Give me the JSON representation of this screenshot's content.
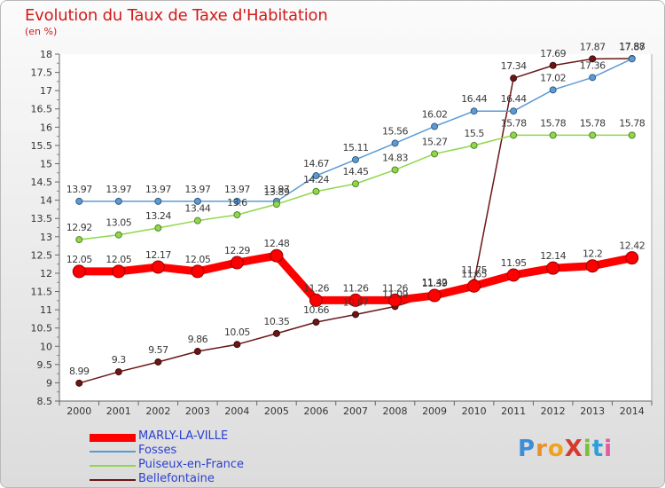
{
  "title": "Evolution du Taux de Taxe d'Habitation",
  "subtitle": "(en %)",
  "brand": "ProXiti",
  "chart_data": {
    "type": "line",
    "x": [
      "2000",
      "2001",
      "2002",
      "2003",
      "2004",
      "2005",
      "2006",
      "2007",
      "2008",
      "2009",
      "2010",
      "2011",
      "2012",
      "2013",
      "2014"
    ],
    "ylim": [
      8.5,
      18
    ],
    "yticks": [
      "8.5",
      "9",
      "9.5",
      "10",
      "10.5",
      "11",
      "11.5",
      "12",
      "12.5",
      "13",
      "13.5",
      "14",
      "14.5",
      "15",
      "15.5",
      "16",
      "16.5",
      "17",
      "17.5",
      "18"
    ],
    "grid": false,
    "legend_position": "bottom-left",
    "series": [
      {
        "name": "MARLY-LA-VILLE",
        "color": "#ff0000",
        "values": [
          12.05,
          12.05,
          12.17,
          12.05,
          12.29,
          12.48,
          11.26,
          11.26,
          11.26,
          11.39,
          11.65,
          11.95,
          12.14,
          12.2,
          12.42
        ]
      },
      {
        "name": "Fosses",
        "color": "#5b9bd5",
        "values": [
          13.97,
          13.97,
          13.97,
          13.97,
          13.97,
          13.97,
          14.67,
          15.11,
          15.56,
          16.02,
          16.44,
          16.44,
          17.02,
          17.36,
          17.87
        ]
      },
      {
        "name": "Puiseux-en-France",
        "color": "#8ed84a",
        "values": [
          12.92,
          13.05,
          13.24,
          13.44,
          13.6,
          13.89,
          14.24,
          14.45,
          14.83,
          15.27,
          15.5,
          15.78,
          15.78,
          15.78,
          15.78
        ]
      },
      {
        "name": "Bellefontaine",
        "color": "#6b1515",
        "values": [
          8.99,
          9.3,
          9.57,
          9.86,
          10.05,
          10.35,
          10.66,
          10.87,
          11.09,
          11.42,
          11.75,
          17.34,
          17.69,
          17.87,
          17.88
        ]
      }
    ]
  }
}
